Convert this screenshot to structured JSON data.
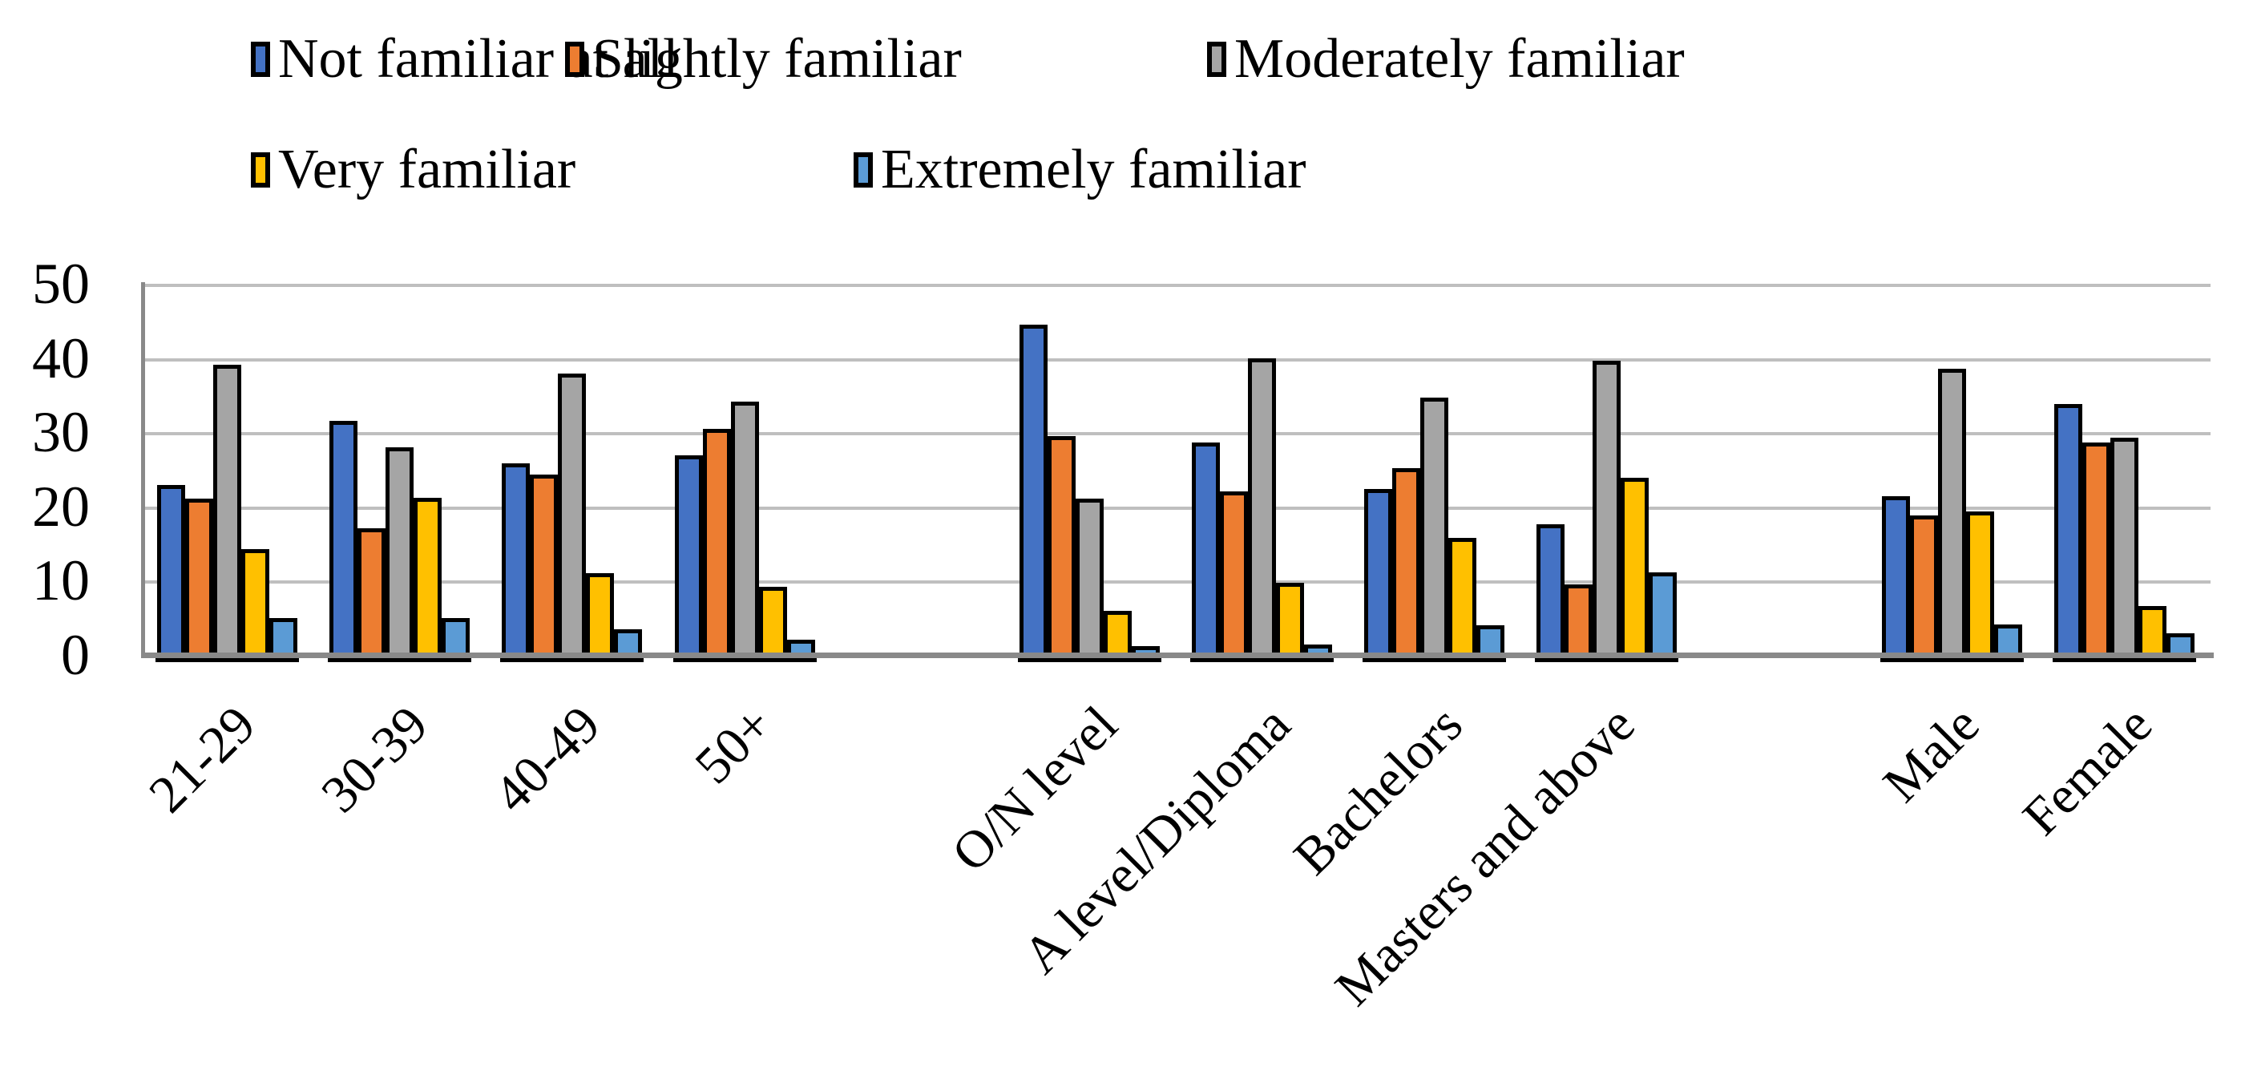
{
  "chart_data": {
    "type": "bar",
    "title": "",
    "xlabel": "",
    "ylabel": "",
    "ylim": [
      0,
      50
    ],
    "yticks": [
      0,
      10,
      20,
      30,
      40,
      50
    ],
    "grid": "horizontal",
    "gridline_color": "#BFBFBF",
    "axis_color": "#898989",
    "bar_border_color": "#000000",
    "legend_position": "top-left, two rows",
    "legend_rows": [
      [
        "Not familiar at all",
        "Slightly familiar",
        "Moderately familiar"
      ],
      [
        "Very familiar",
        "Extremely familiar"
      ]
    ],
    "categories": [
      {
        "label": "21-29",
        "slot": 0,
        "section": "age"
      },
      {
        "label": "30-39",
        "slot": 1,
        "section": "age"
      },
      {
        "label": "40-49",
        "slot": 2,
        "section": "age"
      },
      {
        "label": "50+",
        "slot": 3,
        "section": "age"
      },
      {
        "label": "O/N level",
        "slot": 5,
        "section": "education"
      },
      {
        "label": "A level/Diploma",
        "slot": 6,
        "section": "education"
      },
      {
        "label": "Bachelors",
        "slot": 7,
        "section": "education"
      },
      {
        "label": "Masters and above",
        "slot": 8,
        "section": "education"
      },
      {
        "label": "Male",
        "slot": 10,
        "section": "gender"
      },
      {
        "label": "Female",
        "slot": 11,
        "section": "gender"
      }
    ],
    "series": [
      {
        "name": "Not familiar at all",
        "color": "#4472C4",
        "values": [
          22.4,
          31.0,
          25.3,
          26.4,
          43.9,
          28.1,
          21.8,
          17.1,
          20.8,
          33.3
        ]
      },
      {
        "name": "Slightly familiar",
        "color": "#ED7D31",
        "values": [
          20.5,
          16.5,
          23.8,
          29.9,
          28.9,
          21.5,
          24.6,
          9.0,
          18.3,
          28.1
        ]
      },
      {
        "name": "Moderately familiar",
        "color": "#A5A5A5",
        "values": [
          38.5,
          27.4,
          37.4,
          33.6,
          20.5,
          39.4,
          34.1,
          39.1,
          38.0,
          28.7
        ]
      },
      {
        "name": "Very familiar",
        "color": "#FFC000",
        "values": [
          13.7,
          20.6,
          10.5,
          8.6,
          5.4,
          9.2,
          15.2,
          23.3,
          18.8,
          6.0
        ]
      },
      {
        "name": "Extremely familiar",
        "color": "#5B9BD5",
        "values": [
          4.4,
          4.4,
          2.9,
          1.5,
          0.7,
          0.9,
          3.5,
          10.6,
          3.6,
          2.4
        ]
      }
    ]
  }
}
